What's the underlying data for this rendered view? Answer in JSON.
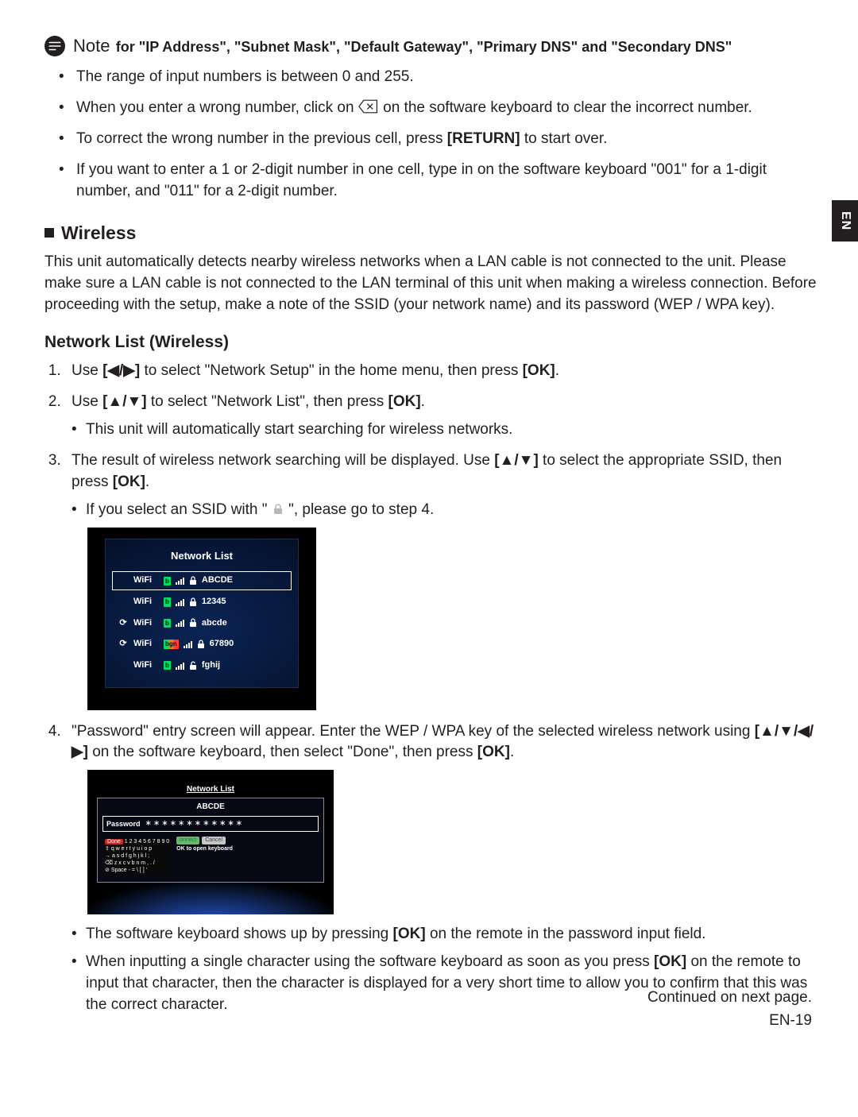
{
  "note": {
    "icon_name": "note-icon",
    "word": "Note",
    "rest": "for \"IP Address\", \"Subnet Mask\", \"Default Gateway\", \"Primary DNS\" and \"Secondary DNS\"",
    "bullets": {
      "b1": "The range of input numbers is between 0 and 255.",
      "b2a": "When you enter a wrong number, click on ",
      "b2b": " on the software keyboard to clear the incorrect number.",
      "b3a": "To correct the wrong number in the previous cell, press ",
      "b3key": "[RETURN]",
      "b3b": " to start over.",
      "b4": "If you want to enter a 1 or 2-digit number in one cell, type in on the software keyboard \"001\" for a 1-digit number, and \"011\" for a 2-digit number."
    }
  },
  "wireless": {
    "heading": "Wireless",
    "para": "This unit automatically detects nearby wireless networks when a LAN cable is not connected to the unit.  Please make sure a LAN cable is not connected to the LAN terminal of this unit when making a wireless connection.  Before proceeding with the setup, make a note of the SSID (your network name) and its password (WEP / WPA key)."
  },
  "netlist": {
    "heading": "Network List (Wireless)",
    "s1a": "Use ",
    "s1key": "[◀/▶]",
    "s1b": " to select \"Network Setup\" in the home menu, then press ",
    "s1ok": "[OK]",
    "s1c": ".",
    "s2a": "Use ",
    "s2key": "[▲/▼]",
    "s2b": " to select \"Network List\", then press ",
    "s2ok": "[OK]",
    "s2c": ".",
    "s2sub": "This unit will automatically start searching for wireless networks.",
    "s3a": "The result of wireless network searching will be displayed.  Use ",
    "s3key": "[▲/▼]",
    "s3b": " to select the appropriate SSID, then press ",
    "s3ok": "[OK]",
    "s3c": ".",
    "s3suba": "If you select an SSID with \" ",
    "s3subb": " \", please go to step 4.",
    "shot1": {
      "title": "Network List",
      "rows": [
        {
          "wps": "",
          "label": "WiFi",
          "band": "b",
          "ssid": "ABCDE",
          "locked": true,
          "sel": true
        },
        {
          "wps": "",
          "label": "WiFi",
          "band": "b",
          "ssid": "12345",
          "locked": true,
          "sel": false
        },
        {
          "wps": "⟳",
          "label": "WiFi",
          "band": "b",
          "ssid": "abcde",
          "locked": true,
          "sel": false
        },
        {
          "wps": "⟳",
          "label": "WiFi",
          "band": "bgn",
          "ssid": "67890",
          "locked": true,
          "sel": false
        },
        {
          "wps": "",
          "label": "WiFi",
          "band": "b",
          "ssid": "fghij",
          "locked": false,
          "sel": false
        }
      ]
    },
    "s4a": "\"Password\" entry screen will appear.  Enter the WEP / WPA key of the selected wireless network using ",
    "s4key": "[▲/▼/◀/▶]",
    "s4b": " on the software keyboard, then select \"Done\", then press ",
    "s4ok": "[OK]",
    "s4c": ".",
    "shot2": {
      "title": "Network List",
      "ssid": "ABCDE",
      "field_label": "Password",
      "field_value": "∗∗∗∗∗∗∗∗∗∗∗∗",
      "done": "Done",
      "row1": "1 2 3 4 5 6 7 8 9 0",
      "row2": "q w e r t y u i o p",
      "row3": "a s d f g h j k l ;",
      "row4": "z x c v b n m , . /",
      "row5": "Space   - = \\ [ ] '",
      "connect": "onnect",
      "cancel": "Cancel",
      "hint": "OK to open keyboard"
    },
    "s4sub1a": "The software keyboard shows up by pressing ",
    "s4sub1ok": "[OK]",
    "s4sub1b": " on the remote in the password input field.",
    "s4sub2a": "When inputting a single character using the software keyboard as soon as you press ",
    "s4sub2ok": "[OK]",
    "s4sub2b": " on the remote to input that character, then the character is displayed for a very short time to allow you to confirm that this was the correct character."
  },
  "side_tab": "EN",
  "footer": {
    "cont": "Continued on next page.",
    "page": "EN-19"
  }
}
